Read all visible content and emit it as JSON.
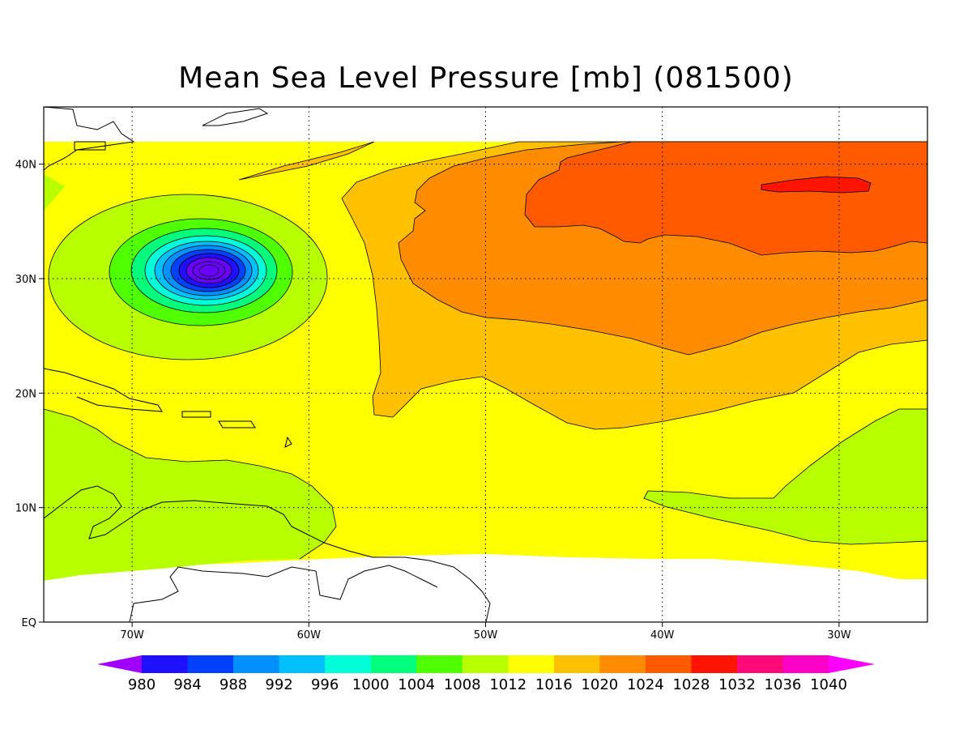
{
  "title": "Mean Sea Level Pressure [mb] (081500)",
  "map": {
    "lon_range": [
      -75,
      -25
    ],
    "lat_range": [
      0,
      45
    ],
    "data_lat_range": [
      4,
      42
    ],
    "lon_ticks": [
      {
        "value": -70,
        "label": "70W"
      },
      {
        "value": -60,
        "label": "60W"
      },
      {
        "value": -50,
        "label": "50W"
      },
      {
        "value": -40,
        "label": "40W"
      },
      {
        "value": -30,
        "label": "30W"
      }
    ],
    "lat_ticks": [
      {
        "value": 0,
        "label": "EQ"
      },
      {
        "value": 10,
        "label": "10N"
      },
      {
        "value": 20,
        "label": "20N"
      },
      {
        "value": 30,
        "label": "30N"
      },
      {
        "value": 40,
        "label": "40N"
      }
    ],
    "grid": "dotted",
    "low_center": {
      "lon": -66,
      "lat": 30.5,
      "min_pressure": 980
    }
  },
  "colorbar": {
    "levels": [
      "980",
      "984",
      "988",
      "992",
      "996",
      "1000",
      "1004",
      "1008",
      "1012",
      "1016",
      "1020",
      "1024",
      "1028",
      "1032",
      "1036",
      "1040"
    ],
    "colors": [
      "#a000ff",
      "#2010ff",
      "#0040ff",
      "#0090ff",
      "#00c0ff",
      "#00ffd8",
      "#00ff7a",
      "#50ff00",
      "#b8ff00",
      "#ffff00",
      "#ffc000",
      "#ff8c00",
      "#ff5a00",
      "#ff1400",
      "#ff0a78",
      "#ff00c8",
      "#ff00ff"
    ]
  }
}
